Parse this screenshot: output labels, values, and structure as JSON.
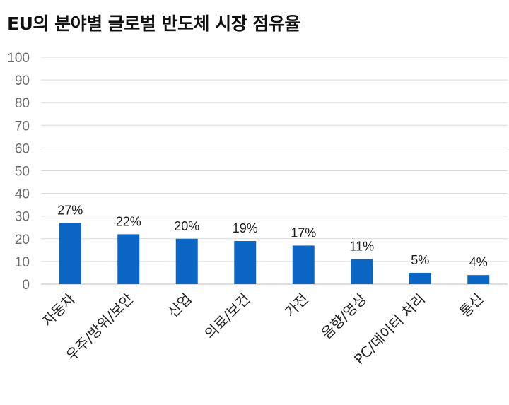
{
  "chart_data": {
    "type": "bar",
    "title": "EU의 분야별 글로벌 반도체 시장 점유율",
    "categories": [
      "자동차",
      "우주/방위/보안",
      "산업",
      "의료/보건",
      "가전",
      "음향/영상",
      "PC/데이터 처리",
      "통신"
    ],
    "values": [
      27,
      22,
      20,
      19,
      17,
      11,
      5,
      4
    ],
    "data_labels": [
      "27%",
      "22%",
      "20%",
      "19%",
      "17%",
      "11%",
      "5%",
      "4%"
    ],
    "yticks": [
      "0",
      "10",
      "20",
      "30",
      "40",
      "50",
      "60",
      "70",
      "80",
      "90",
      "100"
    ],
    "ylim": [
      0,
      100
    ],
    "xlabel": "",
    "ylabel": "",
    "grid": true,
    "bar_color": "#0b66c3"
  }
}
